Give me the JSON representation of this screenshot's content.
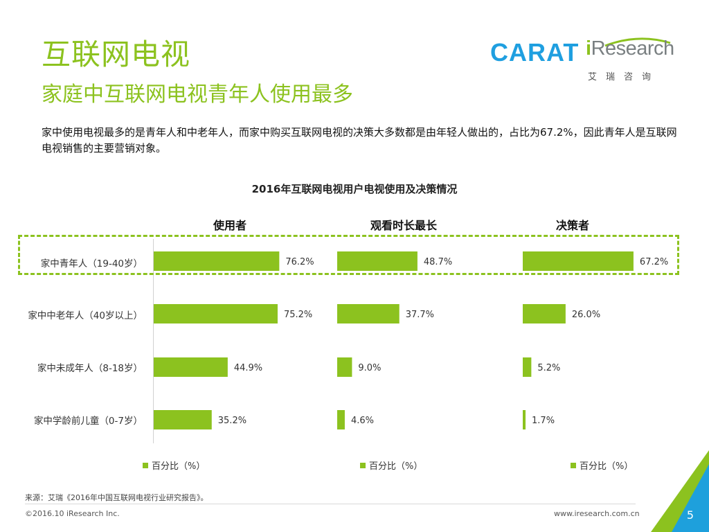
{
  "header": {
    "title": "互联网电视",
    "subtitle": "家庭中互联网电视青年人使用最多",
    "description": "家中使用电视最多的是青年人和中老年人，而家中购买互联网电视的决策大多数都是由年轻人做出的，占比为67.2%，因此青年人是互联网电视销售的主要营销对象。"
  },
  "logos": {
    "carat": "CARAT",
    "iresearch_i": "i",
    "iresearch_rest": "Research",
    "iresearch_cn": "艾瑞咨询"
  },
  "chart_data": {
    "type": "bar",
    "orientation": "horizontal",
    "title": "2016年互联网电视用户电视使用及决策情况",
    "categories": [
      "家中青年人（19-40岁）",
      "家中中老年人（40岁以上）",
      "家中未成年人（8-18岁）",
      "家中学龄前儿童（0-7岁）"
    ],
    "panels": [
      {
        "name": "使用者",
        "legend": "百分比（%）",
        "values": [
          76.2,
          75.2,
          44.9,
          35.2
        ],
        "labels": [
          "76.2%",
          "75.2%",
          "44.9%",
          "35.2%"
        ]
      },
      {
        "name": "观看时长最长",
        "legend": "百分比（%）",
        "values": [
          48.7,
          37.7,
          9.0,
          4.6
        ],
        "labels": [
          "48.7%",
          "37.7%",
          "9.0%",
          "4.6%"
        ]
      },
      {
        "name": "决策者",
        "legend": "百分比（%）",
        "values": [
          67.2,
          26.0,
          5.2,
          1.7
        ],
        "labels": [
          "67.2%",
          "26.0%",
          "5.2%",
          "1.7%"
        ]
      }
    ],
    "xlim": [
      0,
      100
    ],
    "highlighted_category_index": 0,
    "grid": false
  },
  "footer": {
    "source": "来源：艾瑞《2016年中国互联网电视行业研究报告》。",
    "copyright": "©2016.10 iResearch Inc.",
    "url": "www.iresearch.com.cn",
    "page": "5"
  },
  "colors": {
    "accent_green": "#8cc21f",
    "carat_blue": "#1f9fe0",
    "corner_blue": "#1ea0dc",
    "text_gray": "#7a8082"
  }
}
